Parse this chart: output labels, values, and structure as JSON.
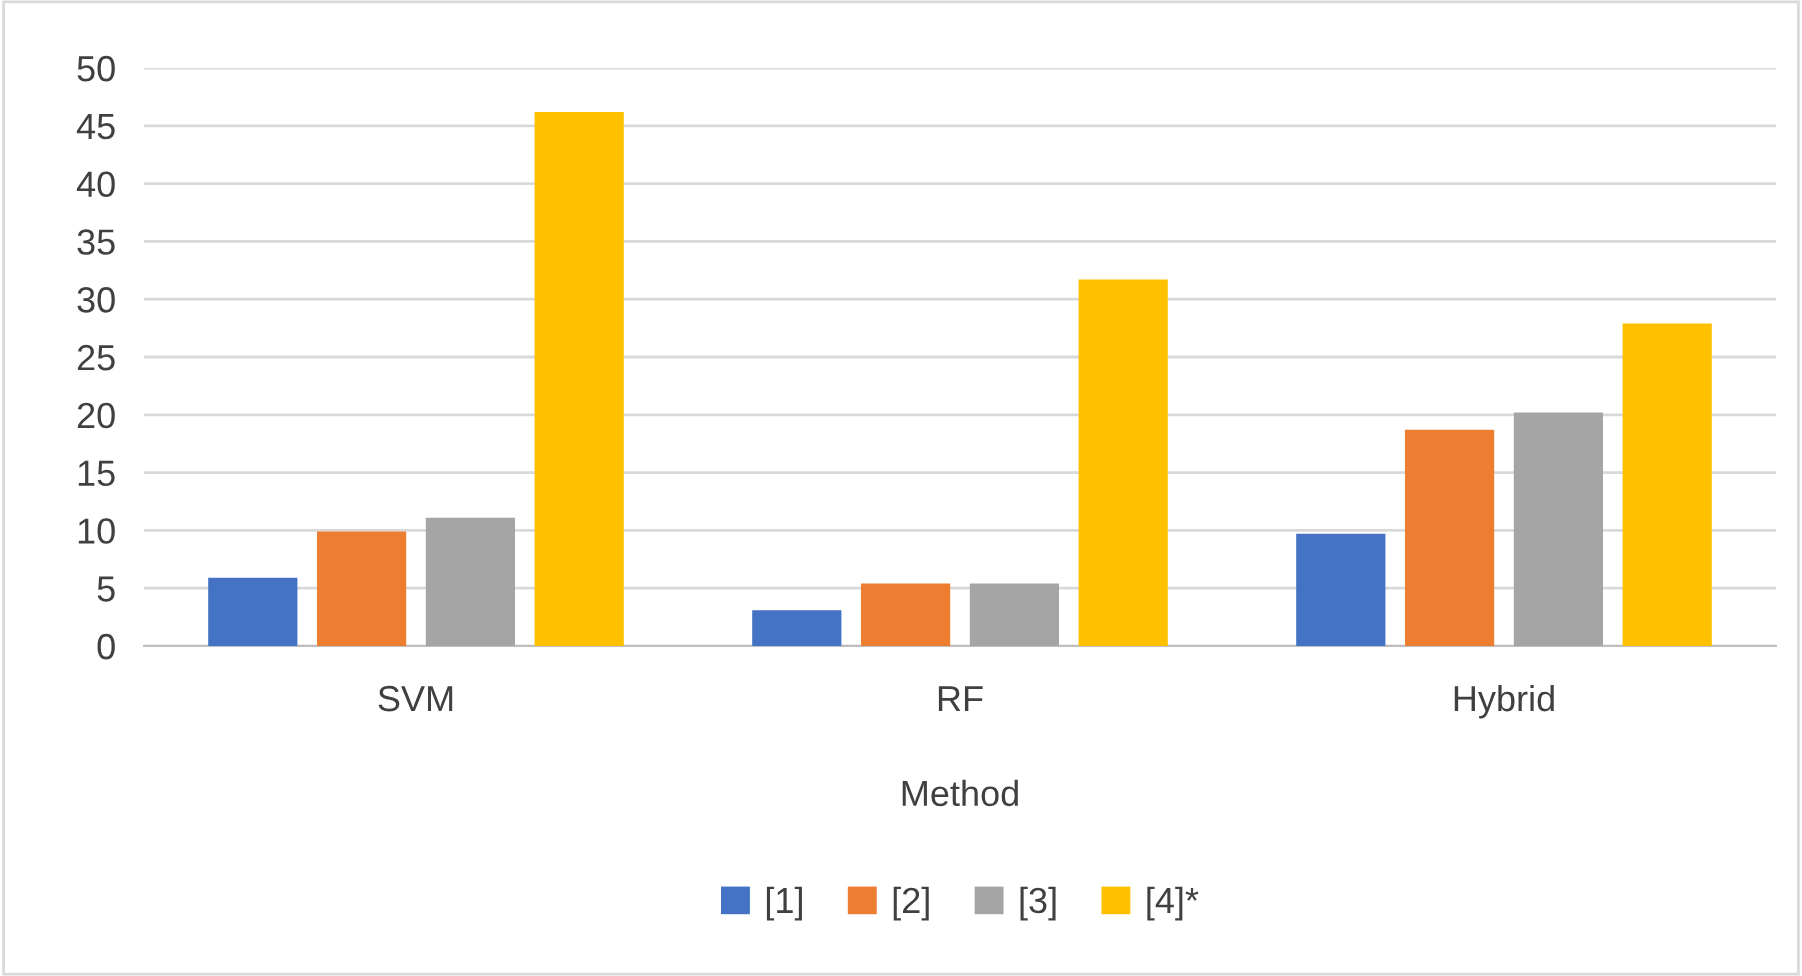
{
  "chart_data": {
    "type": "bar",
    "xlabel": "Method",
    "categories": [
      "SVM",
      "RF",
      "Hybrid"
    ],
    "series": [
      {
        "name": "[1]",
        "color": "#4472c4",
        "values": [
          5.9,
          3.1,
          9.7
        ]
      },
      {
        "name": "[2]",
        "color": "#ed7d31",
        "values": [
          9.9,
          5.4,
          18.7
        ]
      },
      {
        "name": "[3]",
        "color": "#a5a5a5",
        "values": [
          11.1,
          5.4,
          20.2
        ]
      },
      {
        "name": "[4]*",
        "color": "#ffc000",
        "values": [
          46.2,
          31.7,
          27.9
        ]
      }
    ],
    "ylim": [
      0,
      50
    ],
    "yticks": [
      0,
      5,
      10,
      15,
      20,
      25,
      30,
      35,
      40,
      45,
      50
    ],
    "grid": "y",
    "legend": "bottom"
  }
}
